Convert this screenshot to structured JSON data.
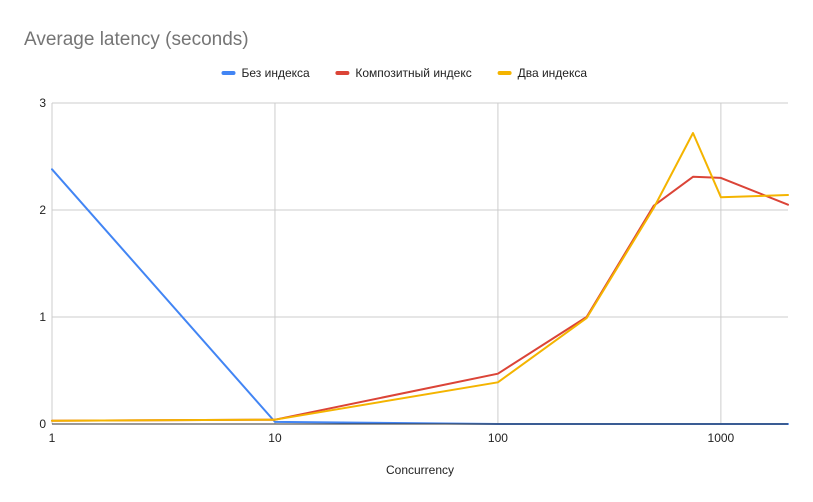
{
  "chart_data": {
    "type": "line",
    "title": "Average latency (seconds)",
    "xlabel": "Concurrency",
    "ylabel": "",
    "x_scale": "log",
    "xlim": [
      1,
      2000
    ],
    "ylim": [
      0,
      3
    ],
    "x_ticks": [
      1,
      10,
      100,
      1000
    ],
    "x_tick_labels": [
      "1",
      "10",
      "100",
      "1000"
    ],
    "y_ticks": [
      0,
      1,
      2,
      3
    ],
    "y_tick_labels": [
      "0",
      "1",
      "2",
      "3"
    ],
    "grid": true,
    "legend_position": "top",
    "series": [
      {
        "name": "Без индекса",
        "color": "#4285f4",
        "points": [
          [
            1,
            2.38
          ],
          [
            10,
            0.02
          ],
          [
            100,
            0.0
          ],
          [
            250,
            0.0
          ],
          [
            500,
            0.0
          ],
          [
            750,
            0.0
          ],
          [
            1000,
            0.0
          ],
          [
            2000,
            0.0
          ]
        ]
      },
      {
        "name": "Композитный индекс",
        "color": "#db4437",
        "points": [
          [
            1,
            0.03
          ],
          [
            10,
            0.04
          ],
          [
            100,
            0.47
          ],
          [
            250,
            1.0
          ],
          [
            500,
            2.04
          ],
          [
            750,
            2.31
          ],
          [
            1000,
            2.3
          ],
          [
            2000,
            2.05
          ]
        ]
      },
      {
        "name": "Два индекса",
        "color": "#f4b400",
        "points": [
          [
            1,
            0.03
          ],
          [
            10,
            0.04
          ],
          [
            100,
            0.39
          ],
          [
            250,
            0.99
          ],
          [
            500,
            2.02
          ],
          [
            750,
            2.72
          ],
          [
            1000,
            2.12
          ],
          [
            2000,
            2.14
          ]
        ]
      }
    ]
  }
}
